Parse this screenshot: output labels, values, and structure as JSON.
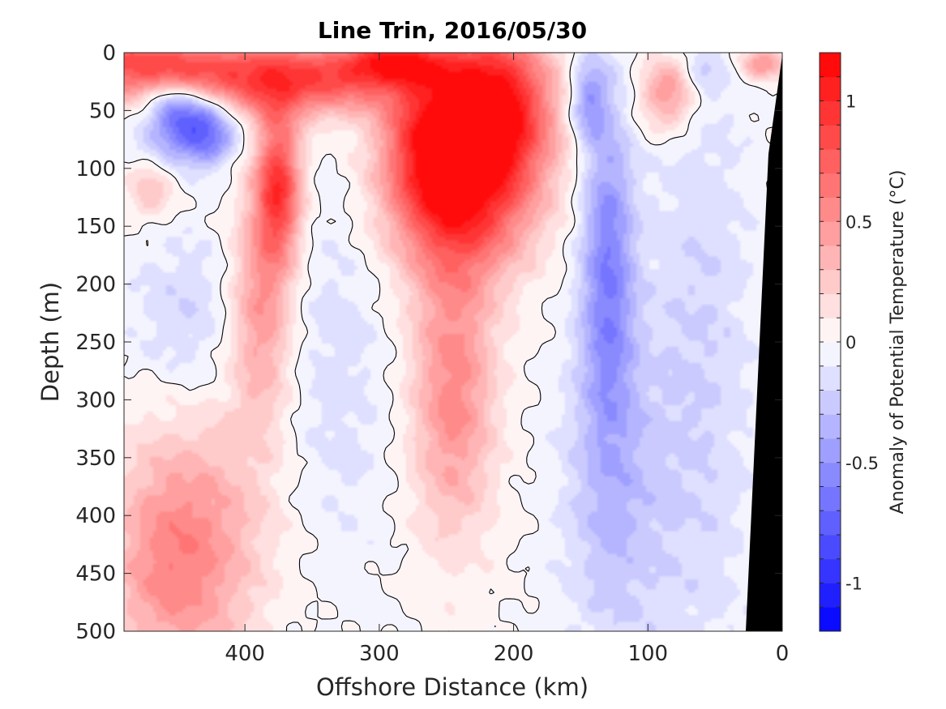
{
  "chart_data": {
    "type": "heatmap",
    "title": "Line Trin, 2016/05/30",
    "xlabel": "Offshore Distance (km)",
    "ylabel": "Depth (m)",
    "colorbar_label": "Anomaly of Potential Temperature (°C)",
    "xlim": [
      490,
      0
    ],
    "ylim": [
      500,
      0
    ],
    "x_reversed": true,
    "y_reversed": true,
    "x_ticks": [
      400,
      300,
      200,
      100,
      0
    ],
    "x_tick_labels": [
      "400",
      "300",
      "200",
      "100",
      "0"
    ],
    "y_ticks": [
      0,
      50,
      100,
      150,
      200,
      250,
      300,
      350,
      400,
      450,
      500
    ],
    "y_tick_labels": [
      "0",
      "50",
      "100",
      "150",
      "200",
      "250",
      "300",
      "350",
      "400",
      "450",
      "500"
    ],
    "clim": [
      -1.2,
      1.2
    ],
    "colorbar_levels": 24,
    "colorbar_ticks": [
      1,
      0.5,
      0,
      -0.5,
      -1
    ],
    "colorbar_tick_labels": [
      "1",
      "0.5",
      "0",
      "-0.5",
      "-1"
    ],
    "colormap": {
      "low": "#0000ff",
      "mid": "#ffffff",
      "high": "#ff0000"
    },
    "bathymetry_color": "#000000",
    "grid": false,
    "zero_contour": true,
    "features": [
      {
        "kind": "warm",
        "x": 488,
        "y": 10,
        "sx": 60,
        "sy": 20,
        "amp": 0.75
      },
      {
        "kind": "warm",
        "x": 370,
        "y": 25,
        "sx": 60,
        "sy": 22,
        "amp": 0.85
      },
      {
        "kind": "warm",
        "x": 290,
        "y": 8,
        "sx": 30,
        "sy": 15,
        "amp": 0.8
      },
      {
        "kind": "warm",
        "x": 215,
        "y": 45,
        "sx": 30,
        "sy": 45,
        "amp": 1.15
      },
      {
        "kind": "warm",
        "x": 240,
        "y": 120,
        "sx": 38,
        "sy": 50,
        "amp": 1.0
      },
      {
        "kind": "warm",
        "x": 245,
        "y": 290,
        "sx": 22,
        "sy": 90,
        "amp": 0.55
      },
      {
        "kind": "warm",
        "x": 268,
        "y": 70,
        "sx": 22,
        "sy": 40,
        "amp": 0.5
      },
      {
        "kind": "warm",
        "x": 375,
        "y": 115,
        "sx": 12,
        "sy": 45,
        "amp": 0.9
      },
      {
        "kind": "warm",
        "x": 388,
        "y": 220,
        "sx": 16,
        "sy": 70,
        "amp": 0.5
      },
      {
        "kind": "warm",
        "x": 440,
        "y": 420,
        "sx": 40,
        "sy": 80,
        "amp": 0.45
      },
      {
        "kind": "warm",
        "x": 460,
        "y": 460,
        "sx": 30,
        "sy": 60,
        "amp": 0.2
      },
      {
        "kind": "warm",
        "x": 470,
        "y": 120,
        "sx": 12,
        "sy": 18,
        "amp": 0.3
      },
      {
        "kind": "warm",
        "x": 85,
        "y": 35,
        "sx": 15,
        "sy": 22,
        "amp": 0.55
      },
      {
        "kind": "warm",
        "x": 15,
        "y": 10,
        "sx": 12,
        "sy": 10,
        "amp": 0.5
      },
      {
        "kind": "cold",
        "x": 440,
        "y": 60,
        "sx": 22,
        "sy": 22,
        "amp": -0.9
      },
      {
        "kind": "cold",
        "x": 457,
        "y": 40,
        "sx": 10,
        "sy": 10,
        "amp": -0.2
      },
      {
        "kind": "cold",
        "x": 425,
        "y": 82,
        "sx": 10,
        "sy": 10,
        "amp": -0.2
      },
      {
        "kind": "cold",
        "x": 130,
        "y": 180,
        "sx": 14,
        "sy": 100,
        "amp": -0.55
      },
      {
        "kind": "cold",
        "x": 145,
        "y": 40,
        "sx": 10,
        "sy": 25,
        "amp": -0.45
      },
      {
        "kind": "cold",
        "x": 125,
        "y": 380,
        "sx": 28,
        "sy": 110,
        "amp": -0.3
      },
      {
        "kind": "cold",
        "x": 60,
        "y": 270,
        "sx": 28,
        "sy": 220,
        "amp": -0.2
      },
      {
        "kind": "cold",
        "x": 445,
        "y": 230,
        "sx": 30,
        "sy": 55,
        "amp": -0.2
      },
      {
        "kind": "cold",
        "x": 330,
        "y": 270,
        "sx": 28,
        "sy": 130,
        "amp": -0.15
      },
      {
        "kind": "cold",
        "x": 60,
        "y": 20,
        "sx": 10,
        "sy": 12,
        "amp": -0.2
      }
    ]
  }
}
